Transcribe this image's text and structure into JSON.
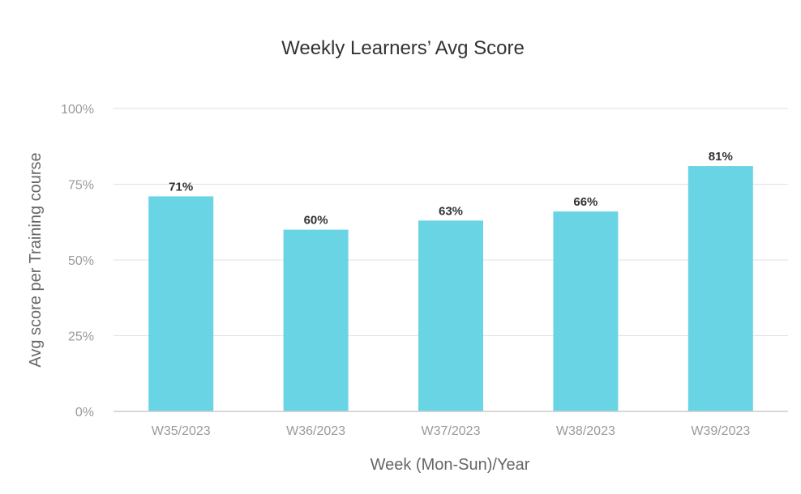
{
  "chart_data": {
    "type": "bar",
    "title": "Weekly Learners’ Avg Score",
    "xlabel": "Week (Mon-Sun)/Year",
    "ylabel": "Avg score per Training course",
    "categories": [
      "W35/2023",
      "W36/2023",
      "W37/2023",
      "W38/2023",
      "W39/2023"
    ],
    "values": [
      71,
      60,
      63,
      66,
      81
    ],
    "value_labels": [
      "71%",
      "60%",
      "63%",
      "66%",
      "81%"
    ],
    "ylim": [
      0,
      100
    ],
    "yticks": [
      0,
      25,
      50,
      75,
      100
    ],
    "ytick_labels": [
      "0%",
      "25%",
      "50%",
      "75%",
      "100%"
    ],
    "grid": true,
    "legend": "none",
    "colors": {
      "bar": "#69d4e4",
      "grid": "#e2e2e2",
      "axis": "#cccccc"
    }
  }
}
